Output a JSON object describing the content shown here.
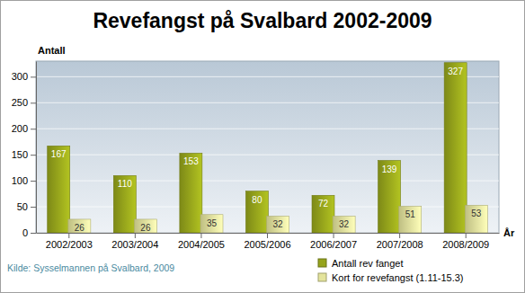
{
  "chart_data": {
    "type": "bar",
    "title": "Revefangst på Svalbard 2002-2009",
    "y_label": "Antall",
    "x_label": "År",
    "source": "Kilde: Sysselmannen på Svalbard, 2009",
    "categories": [
      "2002/2003",
      "2003/2004",
      "2004/2005",
      "2005/2006",
      "2006/2007",
      "2007/2008",
      "2008/2009"
    ],
    "series": [
      {
        "name": "Antall rev fanget",
        "color": "#96a41c",
        "values": [
          167,
          110,
          153,
          80,
          72,
          139,
          327
        ]
      },
      {
        "name": "Kort for revefangst (1.11-15.3)",
        "color": "#e4e49c",
        "values": [
          26,
          26,
          35,
          32,
          32,
          51,
          53
        ]
      }
    ],
    "ylim": [
      0,
      330
    ],
    "yticks": [
      0,
      50,
      100,
      150,
      200,
      250,
      300
    ],
    "grid": true,
    "data_labels": true,
    "legend": "bottom-right"
  }
}
